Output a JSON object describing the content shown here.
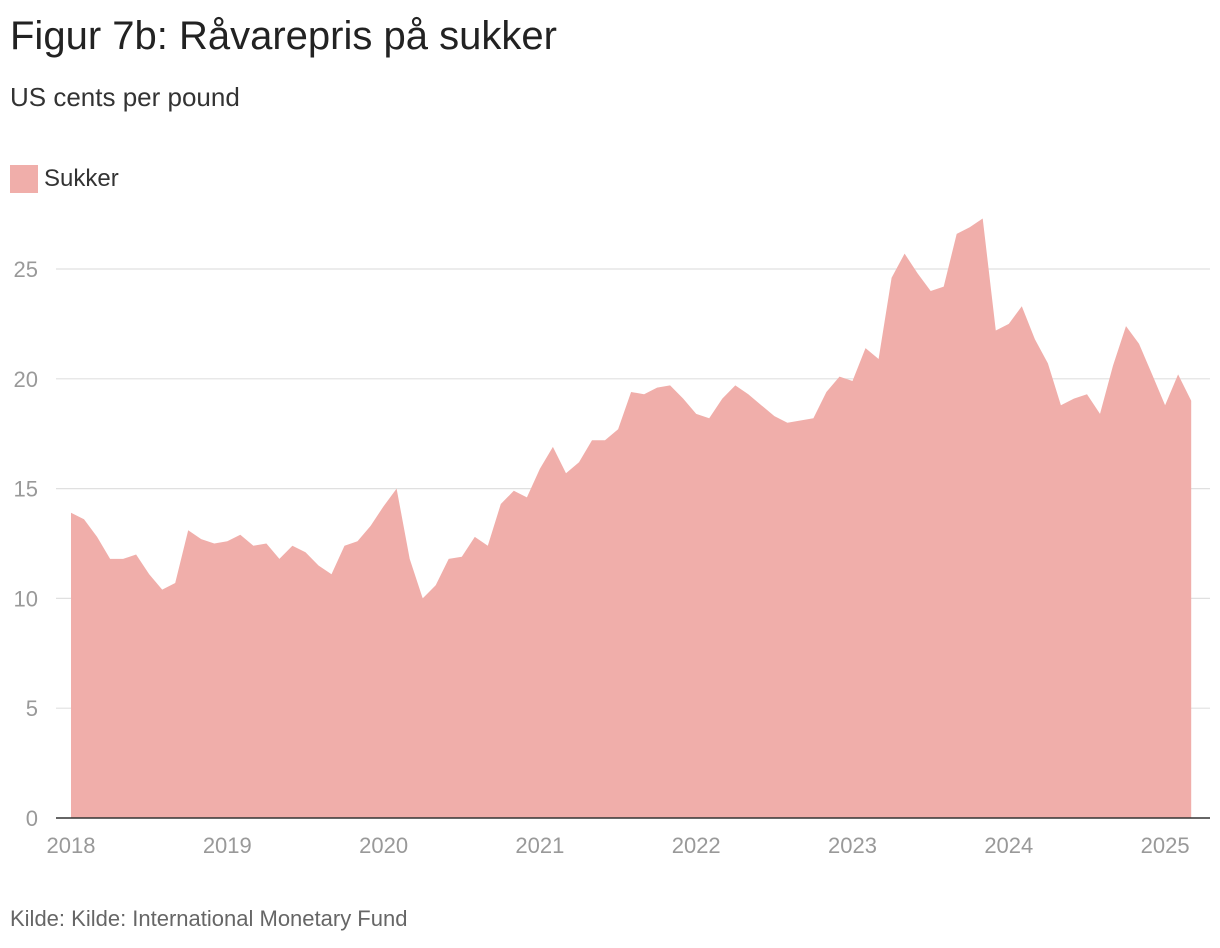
{
  "header": {
    "title": "Figur 7b: Råvarepris på sukker",
    "subtitle": "US cents per pound"
  },
  "legend": {
    "label": "Sukker"
  },
  "footer": {
    "source": "Kilde: Kilde: International Monetary Fund"
  },
  "colors": {
    "area": "#f0aeaa",
    "grid": "#e0e0e0",
    "axis": "#333333"
  },
  "chart_data": {
    "type": "area",
    "title": "Figur 7b: Råvarepris på sukker",
    "ylabel": "US cents per pound",
    "xlabel": "",
    "ylim": [
      0,
      27.5
    ],
    "xlim": [
      2018,
      2025.25
    ],
    "yticks": [
      0,
      5,
      10,
      15,
      20,
      25
    ],
    "xticks": [
      "2018",
      "2019",
      "2020",
      "2021",
      "2022",
      "2023",
      "2024",
      "2025"
    ],
    "grid": true,
    "legend_position": "top-left",
    "series": [
      {
        "name": "Sukker",
        "start": "2018-01",
        "frequency": "monthly",
        "values": [
          13.9,
          13.6,
          12.8,
          11.8,
          11.8,
          12.0,
          11.1,
          10.4,
          10.7,
          13.1,
          12.7,
          12.5,
          12.6,
          12.9,
          12.4,
          12.5,
          11.8,
          12.4,
          12.1,
          11.5,
          11.1,
          12.4,
          12.6,
          13.3,
          14.2,
          15.0,
          11.8,
          10.0,
          10.6,
          11.8,
          11.9,
          12.8,
          12.4,
          14.3,
          14.9,
          14.6,
          15.9,
          16.9,
          15.7,
          16.2,
          17.2,
          17.2,
          17.7,
          19.4,
          19.3,
          19.6,
          19.7,
          19.1,
          18.4,
          18.2,
          19.1,
          19.7,
          19.3,
          18.8,
          18.3,
          18.0,
          18.1,
          18.2,
          19.4,
          20.1,
          19.9,
          21.4,
          20.9,
          24.6,
          25.7,
          24.8,
          24.0,
          24.2,
          26.6,
          26.9,
          27.3,
          22.2,
          22.5,
          23.3,
          21.8,
          20.7,
          18.8,
          19.1,
          19.3,
          18.4,
          20.6,
          22.4,
          21.6,
          20.2,
          18.8,
          20.2,
          19.0
        ]
      }
    ]
  }
}
